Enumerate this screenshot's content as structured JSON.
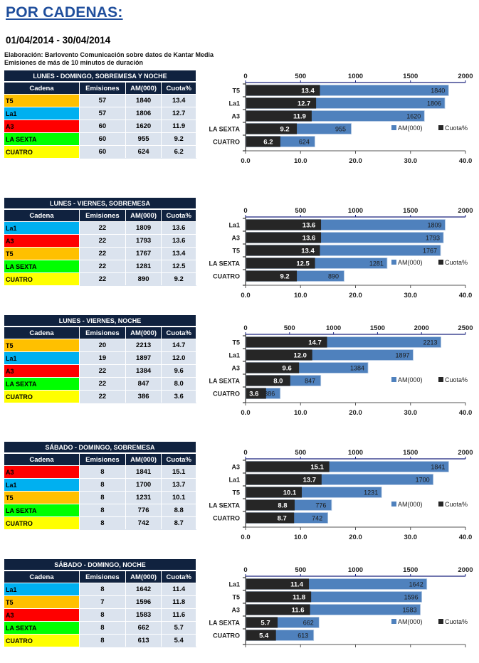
{
  "header": {
    "title": "POR CADENAS:",
    "date_range": "01/04/2014 - 30/04/2014",
    "note_source": "Elaboración:  Barlovento Comunicación  sobre datos de Kantar Media",
    "note_duration": "Emisiones de más de 10 minutos de duración"
  },
  "table_headers": [
    "Cadena",
    "Emisiones",
    "AM(000)",
    "Cuota%"
  ],
  "channel_colors": {
    "T5": "#ffc000",
    "La1": "#00b0f0",
    "A3": "#ff0000",
    "LA SEXTA": "#00ff00",
    "CUATRO": "#ffff00"
  },
  "series_colors": {
    "AM(000)": "#4f81bd",
    "Cuota%": "#262626"
  },
  "sections": [
    {
      "caption": "LUNES - DOMINGO, SOBREMESA Y NOCHE",
      "rows": [
        {
          "cadena": "T5",
          "emisiones": "57",
          "am": "1840",
          "cuota": "13.4"
        },
        {
          "cadena": "La1",
          "emisiones": "57",
          "am": "1806",
          "cuota": "12.7"
        },
        {
          "cadena": "A3",
          "emisiones": "60",
          "am": "1620",
          "cuota": "11.9"
        },
        {
          "cadena": "LA SEXTA",
          "emisiones": "60",
          "am": "955",
          "cuota": "9.2"
        },
        {
          "cadena": "CUATRO",
          "emisiones": "60",
          "am": "624",
          "cuota": "6.2"
        }
      ]
    },
    {
      "caption": "LUNES - VIERNES, SOBREMESA",
      "rows": [
        {
          "cadena": "La1",
          "emisiones": "22",
          "am": "1809",
          "cuota": "13.6"
        },
        {
          "cadena": "A3",
          "emisiones": "22",
          "am": "1793",
          "cuota": "13.6"
        },
        {
          "cadena": "T5",
          "emisiones": "22",
          "am": "1767",
          "cuota": "13.4"
        },
        {
          "cadena": "LA SEXTA",
          "emisiones": "22",
          "am": "1281",
          "cuota": "12.5"
        },
        {
          "cadena": "CUATRO",
          "emisiones": "22",
          "am": "890",
          "cuota": "9.2"
        }
      ]
    },
    {
      "caption": "LUNES - VIERNES, NOCHE",
      "rows": [
        {
          "cadena": "T5",
          "emisiones": "20",
          "am": "2213",
          "cuota": "14.7"
        },
        {
          "cadena": "La1",
          "emisiones": "19",
          "am": "1897",
          "cuota": "12.0"
        },
        {
          "cadena": "A3",
          "emisiones": "22",
          "am": "1384",
          "cuota": "9.6"
        },
        {
          "cadena": "LA SEXTA",
          "emisiones": "22",
          "am": "847",
          "cuota": "8.0"
        },
        {
          "cadena": "CUATRO",
          "emisiones": "22",
          "am": "386",
          "cuota": "3.6"
        }
      ]
    },
    {
      "caption": "SÁBADO - DOMINGO, SOBREMESA",
      "rows": [
        {
          "cadena": "A3",
          "emisiones": "8",
          "am": "1841",
          "cuota": "15.1"
        },
        {
          "cadena": "La1",
          "emisiones": "8",
          "am": "1700",
          "cuota": "13.7"
        },
        {
          "cadena": "T5",
          "emisiones": "8",
          "am": "1231",
          "cuota": "10.1"
        },
        {
          "cadena": "LA SEXTA",
          "emisiones": "8",
          "am": "776",
          "cuota": "8.8"
        },
        {
          "cadena": "CUATRO",
          "emisiones": "8",
          "am": "742",
          "cuota": "8.7"
        }
      ]
    },
    {
      "caption": "SÁBADO - DOMINGO, NOCHE",
      "rows": [
        {
          "cadena": "La1",
          "emisiones": "8",
          "am": "1642",
          "cuota": "11.4"
        },
        {
          "cadena": "T5",
          "emisiones": "7",
          "am": "1596",
          "cuota": "11.8"
        },
        {
          "cadena": "A3",
          "emisiones": "8",
          "am": "1583",
          "cuota": "11.6"
        },
        {
          "cadena": "LA SEXTA",
          "emisiones": "8",
          "am": "662",
          "cuota": "5.7"
        },
        {
          "cadena": "CUATRO",
          "emisiones": "8",
          "am": "613",
          "cuota": "5.4"
        }
      ]
    }
  ],
  "chart_data": [
    {
      "type": "bar",
      "orientation": "horizontal",
      "title": "LUNES - DOMINGO, SOBREMESA Y NOCHE",
      "categories": [
        "T5",
        "La1",
        "A3",
        "LA SEXTA",
        "CUATRO"
      ],
      "series": [
        {
          "name": "AM(000)",
          "axis": "top",
          "values": [
            1840,
            1806,
            1620,
            955,
            624
          ]
        },
        {
          "name": "Cuota%",
          "axis": "bottom",
          "values": [
            13.4,
            12.7,
            11.9,
            9.2,
            6.2
          ]
        }
      ],
      "top_axis": {
        "range": [
          0,
          2000
        ],
        "ticks": [
          "0",
          "500",
          "1000",
          "1500",
          "2000"
        ]
      },
      "bottom_axis": {
        "range": [
          0,
          40
        ],
        "ticks": [
          "0.0",
          "10.0",
          "20.0",
          "30.0",
          "40.0"
        ]
      },
      "legend": {
        "entries": [
          "AM(000)",
          "Cuota%"
        ],
        "position": "bottom-right"
      }
    },
    {
      "type": "bar",
      "orientation": "horizontal",
      "title": "LUNES - VIERNES, SOBREMESA",
      "categories": [
        "La1",
        "A3",
        "T5",
        "LA SEXTA",
        "CUATRO"
      ],
      "series": [
        {
          "name": "AM(000)",
          "axis": "top",
          "values": [
            1809,
            1793,
            1767,
            1281,
            890
          ]
        },
        {
          "name": "Cuota%",
          "axis": "bottom",
          "values": [
            13.6,
            13.6,
            13.4,
            12.5,
            9.2
          ]
        }
      ],
      "top_axis": {
        "range": [
          0,
          2000
        ],
        "ticks": [
          "0",
          "500",
          "1000",
          "1500",
          "2000"
        ]
      },
      "bottom_axis": {
        "range": [
          0,
          40
        ],
        "ticks": [
          "0.0",
          "10.0",
          "20.0",
          "30.0",
          "40.0"
        ]
      },
      "legend": {
        "entries": [
          "AM(000)",
          "Cuota%"
        ],
        "position": "bottom-right"
      }
    },
    {
      "type": "bar",
      "orientation": "horizontal",
      "title": "LUNES - VIERNES, NOCHE",
      "categories": [
        "T5",
        "La1",
        "A3",
        "LA SEXTA",
        "CUATRO"
      ],
      "series": [
        {
          "name": "AM(000)",
          "axis": "top",
          "values": [
            2213,
            1897,
            1384,
            847,
            386
          ]
        },
        {
          "name": "Cuota%",
          "axis": "bottom",
          "values": [
            14.7,
            12.0,
            9.6,
            8.0,
            3.6
          ]
        }
      ],
      "top_axis": {
        "range": [
          0,
          2500
        ],
        "ticks": [
          "0",
          "500",
          "1000",
          "1500",
          "2000",
          "2500"
        ]
      },
      "bottom_axis": {
        "range": [
          0,
          40
        ],
        "ticks": [
          "0.0",
          "10.0",
          "20.0",
          "30.0",
          "40.0"
        ]
      },
      "legend": {
        "entries": [
          "AM(000)",
          "Cuota%"
        ],
        "position": "bottom-right"
      }
    },
    {
      "type": "bar",
      "orientation": "horizontal",
      "title": "SÁBADO - DOMINGO, SOBREMESA",
      "categories": [
        "A3",
        "La1",
        "T5",
        "LA SEXTA",
        "CUATRO"
      ],
      "series": [
        {
          "name": "AM(000)",
          "axis": "top",
          "values": [
            1841,
            1700,
            1231,
            776,
            742
          ]
        },
        {
          "name": "Cuota%",
          "axis": "bottom",
          "values": [
            15.1,
            13.7,
            10.1,
            8.8,
            8.7
          ]
        }
      ],
      "top_axis": {
        "range": [
          0,
          2000
        ],
        "ticks": [
          "0",
          "500",
          "1000",
          "1500",
          "2000"
        ]
      },
      "bottom_axis": {
        "range": [
          0,
          40
        ],
        "ticks": [
          "0.0",
          "10.0",
          "20.0",
          "30.0",
          "40.0"
        ]
      },
      "legend": {
        "entries": [
          "AM(000)",
          "Cuota%"
        ],
        "position": "bottom-right"
      }
    },
    {
      "type": "bar",
      "orientation": "horizontal",
      "title": "SÁBADO - DOMINGO, NOCHE",
      "categories": [
        "La1",
        "T5",
        "A3",
        "LA SEXTA",
        "CUATRO"
      ],
      "series": [
        {
          "name": "AM(000)",
          "axis": "top",
          "values": [
            1642,
            1596,
            1583,
            662,
            613
          ]
        },
        {
          "name": "Cuota%",
          "axis": "bottom",
          "values": [
            11.4,
            11.8,
            11.6,
            5.7,
            5.4
          ]
        }
      ],
      "top_axis": {
        "range": [
          0,
          2000
        ],
        "ticks": [
          "0",
          "500",
          "1000",
          "1500",
          "2000"
        ]
      },
      "bottom_axis": {
        "range": [
          0,
          40
        ],
        "ticks": []
      },
      "legend": {
        "entries": [
          "AM(000)",
          "Cuota%"
        ],
        "position": "bottom-right"
      }
    }
  ]
}
